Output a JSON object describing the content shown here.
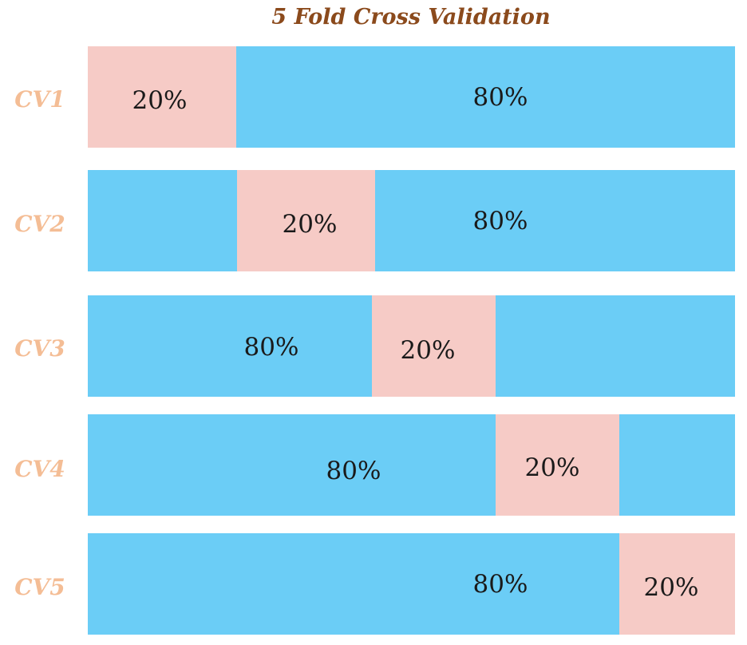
{
  "title": "5 Fold Cross Validation",
  "colors": {
    "train": "#6bcdf6",
    "test": "#f6cbc6",
    "title": "#8b4a1c",
    "row_label": "#f4bd95"
  },
  "rows": [
    {
      "label": "CV1",
      "train_label": "80%",
      "test_label": "20%",
      "test_fold": 1
    },
    {
      "label": "CV2",
      "train_label": "80%",
      "test_label": "20%",
      "test_fold": 2
    },
    {
      "label": "CV3",
      "train_label": "80%",
      "test_label": "20%",
      "test_fold": 3
    },
    {
      "label": "CV4",
      "train_label": "80%",
      "test_label": "20%",
      "test_fold": 4
    },
    {
      "label": "CV5",
      "train_label": "80%",
      "test_label": "20%",
      "test_fold": 5
    }
  ]
}
